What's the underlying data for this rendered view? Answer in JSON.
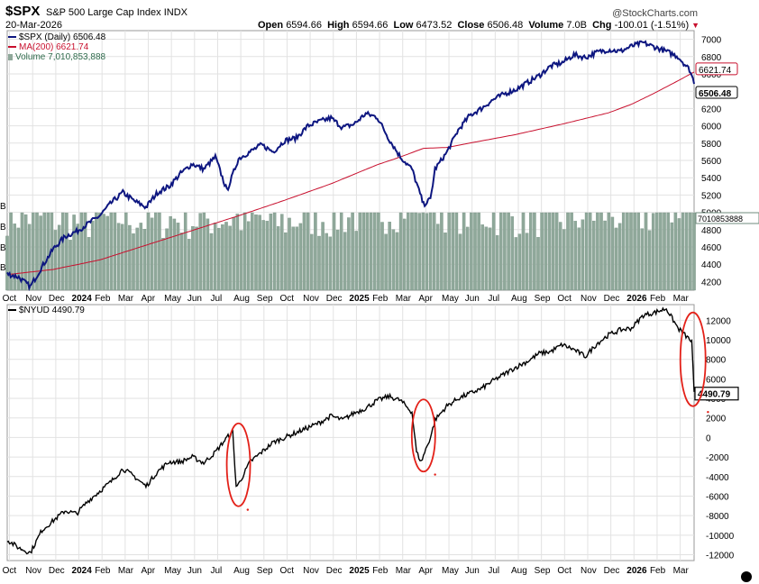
{
  "header": {
    "symbol": "$SPX",
    "name": "S&P 500 Large Cap Index",
    "exchange": "INDX",
    "date": "20-Mar-2026",
    "open_label": "Open",
    "open": "6594.66",
    "high_label": "High",
    "high": "6594.66",
    "low_label": "Low",
    "low": "6473.52",
    "close_label": "Close",
    "close": "6506.48",
    "volume_label": "Volume",
    "volume": "7.0B",
    "chg_label": "Chg",
    "chg": "-100.01 (-1.51%)",
    "chg_arrow": "▼",
    "brand": "@StockCharts.com"
  },
  "legend": {
    "spx": "$SPX (Daily) 6506.48",
    "ma": "MA(200) 6621.74",
    "volume": "Volume 7,010,853,888",
    "nyud": "$NYUD 4490.79"
  },
  "left_axis_letters": [
    "B",
    "B",
    "B",
    "B"
  ],
  "colors": {
    "price": "#0d1680",
    "ma": "#c8102e",
    "volume": "#8fa89a",
    "nyud": "#000000",
    "circle": "#e32119",
    "grid": "#e2e2e2"
  },
  "chart_data": [
    {
      "type": "line",
      "title": "S&P 500 Large Cap Index (Daily)",
      "ylim": [
        4100,
        7100
      ],
      "yticks": [
        4200,
        4400,
        4600,
        4800,
        5000,
        5200,
        5400,
        5600,
        5800,
        6000,
        6200,
        6400,
        6600,
        6800,
        7000
      ],
      "x_month_labels": [
        "Oct",
        "Nov",
        "Dec",
        "2024",
        "Feb",
        "Mar",
        "Apr",
        "May",
        "Jun",
        "Jul",
        "Aug",
        "Sep",
        "Oct",
        "Nov",
        "Dec",
        "2025",
        "Feb",
        "Mar",
        "Apr",
        "May",
        "Jun",
        "Jul",
        "Aug",
        "Sep",
        "Oct",
        "Nov",
        "Dec",
        "2026",
        "Feb",
        "Mar"
      ],
      "x_month_index": [
        0,
        1,
        2,
        3,
        4,
        5,
        6,
        7,
        8,
        9,
        10,
        11,
        12,
        13,
        14,
        15,
        16,
        17,
        18,
        19,
        20,
        21,
        22,
        23,
        24,
        25,
        26,
        27,
        28,
        29
      ],
      "series": [
        {
          "name": "$SPX",
          "t": [
            0,
            0.5,
            1.0,
            1.5,
            2.0,
            2.5,
            3.0,
            3.5,
            4.0,
            4.5,
            5.0,
            5.5,
            6.0,
            6.5,
            7.0,
            7.5,
            8.0,
            8.5,
            9.0,
            9.5,
            10.0,
            10.5,
            11.0,
            11.5,
            12.0,
            12.5,
            13.0,
            13.5,
            14.0,
            14.5,
            15.0,
            15.5,
            16.0,
            16.5,
            17.0,
            17.5,
            18.0,
            18.3,
            18.5,
            19.0,
            19.5,
            20.0,
            20.5,
            21.0,
            21.5,
            22.0,
            22.5,
            23.0,
            23.5,
            24.0,
            24.5,
            25.0,
            25.5,
            26.0,
            26.5,
            27.0,
            27.5,
            28.0,
            28.5,
            29.0,
            29.5,
            29.7
          ],
          "values": [
            4290,
            4250,
            4140,
            4370,
            4580,
            4720,
            4780,
            4870,
            4960,
            5110,
            5230,
            5130,
            5060,
            5230,
            5300,
            5450,
            5560,
            5500,
            5640,
            5250,
            5620,
            5700,
            5780,
            5700,
            5830,
            5860,
            6000,
            6050,
            6090,
            5980,
            6020,
            6140,
            6100,
            5850,
            5640,
            5500,
            5090,
            5150,
            5500,
            5690,
            5950,
            6120,
            6200,
            6300,
            6370,
            6420,
            6500,
            6580,
            6690,
            6730,
            6820,
            6790,
            6850,
            6880,
            6860,
            6920,
            6960,
            6910,
            6860,
            6800,
            6650,
            6506.48
          ]
        },
        {
          "name": "MA(200)",
          "t": [
            0,
            2,
            4,
            6,
            8,
            10,
            12,
            14,
            16,
            17,
            18,
            19,
            20,
            22,
            24,
            26,
            27,
            28,
            29,
            29.7
          ],
          "values": [
            4280,
            4340,
            4450,
            4620,
            4790,
            4960,
            5140,
            5330,
            5550,
            5640,
            5740,
            5750,
            5800,
            5900,
            6020,
            6150,
            6250,
            6380,
            6520,
            6621.74
          ]
        }
      ],
      "price_labels": [
        "6621.74",
        "6506.48"
      ],
      "volume": {
        "name": "Volume",
        "last_label": "7010853888",
        "t": [
          0,
          1,
          2,
          3,
          4,
          5,
          6,
          7,
          8,
          9,
          10,
          11,
          12,
          13,
          14,
          15,
          16,
          17,
          18,
          19,
          20,
          21,
          22,
          23,
          24,
          25,
          26,
          27,
          28,
          29,
          29.7
        ],
        "values_billions": [
          3.9,
          3.7,
          3.6,
          3.4,
          3.5,
          3.7,
          3.5,
          3.6,
          3.5,
          3.6,
          3.6,
          3.5,
          3.4,
          3.7,
          3.6,
          3.8,
          3.9,
          4.2,
          4.7,
          4.1,
          3.9,
          3.8,
          3.7,
          3.7,
          3.6,
          3.8,
          3.9,
          3.7,
          3.9,
          4.3,
          7.0
        ]
      }
    },
    {
      "type": "line",
      "title": "$NYUD",
      "ylim": [
        -12600,
        13600
      ],
      "yticks": [
        -12000,
        -10000,
        -8000,
        -6000,
        -4000,
        -2000,
        0,
        2000,
        4000,
        6000,
        8000,
        10000,
        12000
      ],
      "x_month_labels": [
        "Oct",
        "Nov",
        "Dec",
        "2024",
        "Feb",
        "Mar",
        "Apr",
        "May",
        "Jun",
        "Jul",
        "Aug",
        "Sep",
        "Oct",
        "Nov",
        "Dec",
        "2025",
        "Feb",
        "Mar",
        "Apr",
        "May",
        "Jun",
        "Jul",
        "Aug",
        "Sep",
        "Oct",
        "Nov",
        "Dec",
        "2026",
        "Feb",
        "Mar"
      ],
      "series": [
        {
          "name": "$NYUD",
          "t": [
            0,
            0.5,
            1.0,
            1.5,
            2.0,
            2.5,
            3.0,
            3.5,
            4.0,
            4.5,
            5.0,
            5.5,
            6.0,
            6.5,
            7.0,
            7.5,
            8.0,
            8.5,
            9.0,
            9.5,
            9.75,
            9.9,
            10.0,
            10.5,
            11.0,
            11.5,
            12.0,
            12.5,
            13.0,
            13.5,
            14.0,
            14.5,
            15.0,
            15.5,
            16.0,
            16.5,
            17.0,
            17.5,
            17.7,
            17.9,
            18.1,
            18.3,
            18.5,
            19.0,
            19.5,
            20.0,
            20.5,
            21.0,
            21.5,
            22.0,
            22.5,
            23.0,
            23.5,
            24.0,
            24.5,
            25.0,
            25.5,
            26.0,
            26.5,
            27.0,
            27.5,
            28.0,
            28.5,
            29.0,
            29.3,
            29.6,
            29.7
          ],
          "values": [
            -10500,
            -11300,
            -11800,
            -9500,
            -8500,
            -7500,
            -7800,
            -6500,
            -5500,
            -4500,
            -3200,
            -4000,
            -5000,
            -3500,
            -2500,
            -2500,
            -2000,
            -2600,
            -1500,
            0,
            500,
            -5000,
            -4800,
            -2500,
            -1500,
            -500,
            0,
            500,
            1000,
            1500,
            2200,
            1800,
            2500,
            3000,
            3800,
            4200,
            3800,
            2600,
            -1500,
            -2500,
            -1200,
            0,
            1800,
            3200,
            4000,
            4500,
            5000,
            5800,
            6500,
            7200,
            7800,
            8600,
            8800,
            9500,
            9000,
            8300,
            9600,
            10500,
            11000,
            11200,
            12500,
            12800,
            13200,
            11200,
            10500,
            9800,
            4490.79
          ]
        }
      ],
      "annotations": [
        "circle: Aug 2024 drop",
        "circle: Apr 2025 drop",
        "circle: Mar 2026 drop"
      ],
      "price_label": "4490.79"
    }
  ]
}
